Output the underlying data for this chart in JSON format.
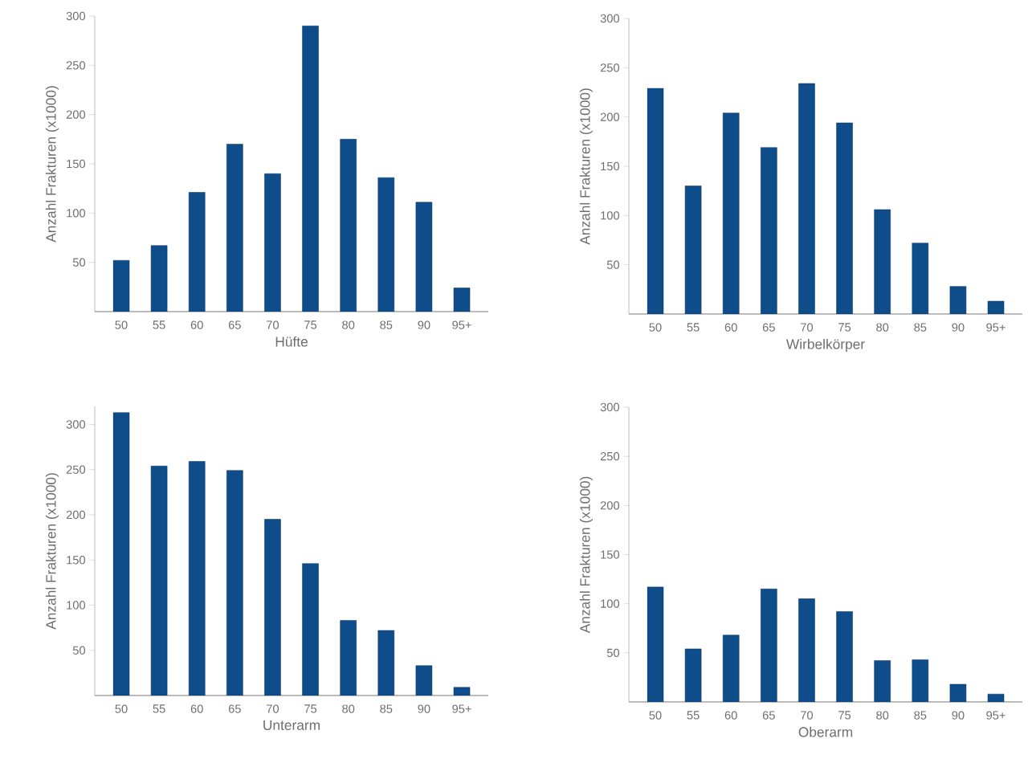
{
  "chart_data": [
    {
      "type": "bar",
      "xlabel": "Hüfte",
      "ylabel": "Anzahl Frakturen (x1000)",
      "categories": [
        "50",
        "55",
        "60",
        "65",
        "70",
        "75",
        "80",
        "85",
        "90",
        "95+"
      ],
      "values": [
        52,
        67,
        121,
        170,
        140,
        290,
        175,
        136,
        111,
        24
      ],
      "color": "#0f4c8a",
      "ylim": [
        0,
        300
      ],
      "yticks": [
        50,
        100,
        150,
        200,
        250,
        300
      ]
    },
    {
      "type": "bar",
      "xlabel": "Wirbelkörper",
      "ylabel": "Anzahl Frakturen (x1000)",
      "categories": [
        "50",
        "55",
        "60",
        "65",
        "70",
        "75",
        "80",
        "85",
        "90",
        "95+"
      ],
      "values": [
        229,
        130,
        204,
        169,
        234,
        194,
        106,
        72,
        28,
        13
      ],
      "color": "#0f4c8a",
      "ylim": [
        0,
        300
      ],
      "yticks": [
        50,
        100,
        150,
        200,
        250,
        300
      ]
    },
    {
      "type": "bar",
      "xlabel": "Unterarm",
      "ylabel": "Anzahl Frakturen (x1000)",
      "categories": [
        "50",
        "55",
        "60",
        "65",
        "70",
        "75",
        "80",
        "85",
        "90",
        "95+"
      ],
      "values": [
        313,
        254,
        259,
        249,
        195,
        146,
        83,
        72,
        33,
        9
      ],
      "color": "#0f4c8a",
      "ylim": [
        0,
        320
      ],
      "yticks": [
        50,
        100,
        150,
        200,
        250,
        300
      ]
    },
    {
      "type": "bar",
      "xlabel": "Oberarm",
      "ylabel": "Anzahl Frakturen (x1000)",
      "categories": [
        "50",
        "55",
        "60",
        "65",
        "70",
        "75",
        "80",
        "85",
        "90",
        "95+"
      ],
      "values": [
        117,
        54,
        68,
        115,
        105,
        92,
        42,
        43,
        18,
        8
      ],
      "color": "#0f4c8a",
      "ylim": [
        0,
        300
      ],
      "yticks": [
        50,
        100,
        150,
        200,
        250,
        300
      ]
    }
  ]
}
